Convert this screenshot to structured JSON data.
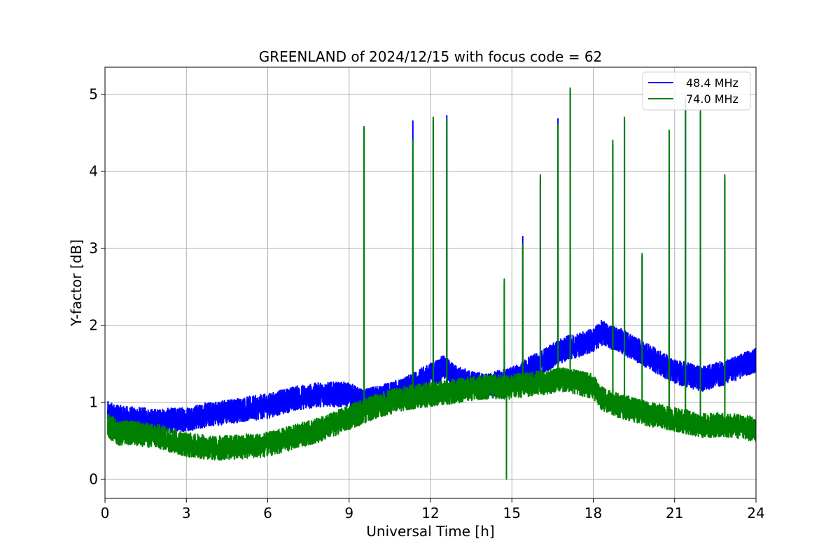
{
  "chart_data": {
    "type": "line",
    "title": "GREENLAND of 2024/12/15 with focus code = 62",
    "xlabel": "Universal Time [h]",
    "ylabel": "Y-factor [dB]",
    "xlim": [
      0,
      24
    ],
    "ylim": [
      -0.25,
      5.35
    ],
    "xticks": [
      0,
      3,
      6,
      9,
      12,
      15,
      18,
      21,
      24
    ],
    "xtick_labels": [
      "0",
      "3",
      "6",
      "9",
      "12",
      "15",
      "18",
      "21",
      "24"
    ],
    "yticks": [
      0,
      1,
      2,
      3,
      4,
      5
    ],
    "ytick_labels": [
      "0",
      "1",
      "2",
      "3",
      "4",
      "5"
    ],
    "grid": true,
    "legend_position": "top-right",
    "series": [
      {
        "name": "48.4 MHz",
        "color": "#0000ff",
        "x": [
          0.1,
          0.5,
          1.0,
          2.0,
          3.0,
          4.0,
          5.0,
          6.0,
          7.0,
          8.0,
          9.0,
          9.5,
          10.0,
          11.0,
          12.0,
          12.5,
          13.0,
          14.0,
          15.0,
          16.0,
          17.0,
          18.0,
          18.3,
          19.0,
          20.0,
          21.0,
          22.0,
          23.0,
          24.0
        ],
        "y": [
          0.85,
          0.8,
          0.78,
          0.75,
          0.78,
          0.85,
          0.9,
          0.95,
          1.05,
          1.1,
          1.1,
          1.0,
          1.05,
          1.15,
          1.35,
          1.45,
          1.3,
          1.2,
          1.3,
          1.5,
          1.7,
          1.8,
          1.9,
          1.8,
          1.6,
          1.4,
          1.3,
          1.4,
          1.55
        ],
        "spikes": [
          {
            "x": 9.55,
            "y": 4.55
          },
          {
            "x": 11.35,
            "y": 4.65
          },
          {
            "x": 12.1,
            "y": 4.65
          },
          {
            "x": 12.6,
            "y": 4.72
          },
          {
            "x": 14.72,
            "y": 2.55
          },
          {
            "x": 15.4,
            "y": 3.15
          },
          {
            "x": 16.05,
            "y": 3.9
          },
          {
            "x": 16.7,
            "y": 4.68
          },
          {
            "x": 17.15,
            "y": 5.05
          },
          {
            "x": 18.72,
            "y": 4.35
          },
          {
            "x": 19.15,
            "y": 4.65
          },
          {
            "x": 19.8,
            "y": 2.9
          },
          {
            "x": 20.8,
            "y": 4.5
          },
          {
            "x": 21.4,
            "y": 4.85
          },
          {
            "x": 21.95,
            "y": 4.75
          },
          {
            "x": 22.85,
            "y": 3.9
          }
        ]
      },
      {
        "name": "74.0 MHz",
        "color": "#008000",
        "x": [
          0.1,
          0.5,
          1.0,
          2.0,
          3.0,
          4.0,
          5.0,
          6.0,
          7.0,
          8.0,
          9.0,
          10.0,
          11.0,
          12.0,
          13.0,
          14.0,
          15.0,
          16.0,
          17.0,
          18.0,
          18.3,
          19.0,
          20.0,
          21.0,
          22.0,
          23.0,
          24.0
        ],
        "y": [
          0.7,
          0.6,
          0.6,
          0.55,
          0.45,
          0.4,
          0.42,
          0.45,
          0.55,
          0.65,
          0.8,
          0.95,
          1.05,
          1.1,
          1.15,
          1.2,
          1.2,
          1.25,
          1.3,
          1.2,
          1.05,
          0.95,
          0.85,
          0.78,
          0.7,
          0.7,
          0.65
        ],
        "spikes": [
          {
            "x": 9.55,
            "y": 4.58
          },
          {
            "x": 11.35,
            "y": 4.4
          },
          {
            "x": 12.1,
            "y": 4.7
          },
          {
            "x": 12.6,
            "y": 4.67
          },
          {
            "x": 14.72,
            "y": 2.6
          },
          {
            "x": 14.8,
            "y": 0.0
          },
          {
            "x": 15.4,
            "y": 3.05
          },
          {
            "x": 16.05,
            "y": 3.95
          },
          {
            "x": 16.7,
            "y": 4.6
          },
          {
            "x": 17.15,
            "y": 5.08
          },
          {
            "x": 18.72,
            "y": 4.4
          },
          {
            "x": 19.15,
            "y": 4.7
          },
          {
            "x": 19.8,
            "y": 2.93
          },
          {
            "x": 20.8,
            "y": 4.53
          },
          {
            "x": 21.4,
            "y": 4.95
          },
          {
            "x": 21.95,
            "y": 4.8
          },
          {
            "x": 22.85,
            "y": 3.95
          }
        ]
      }
    ]
  }
}
